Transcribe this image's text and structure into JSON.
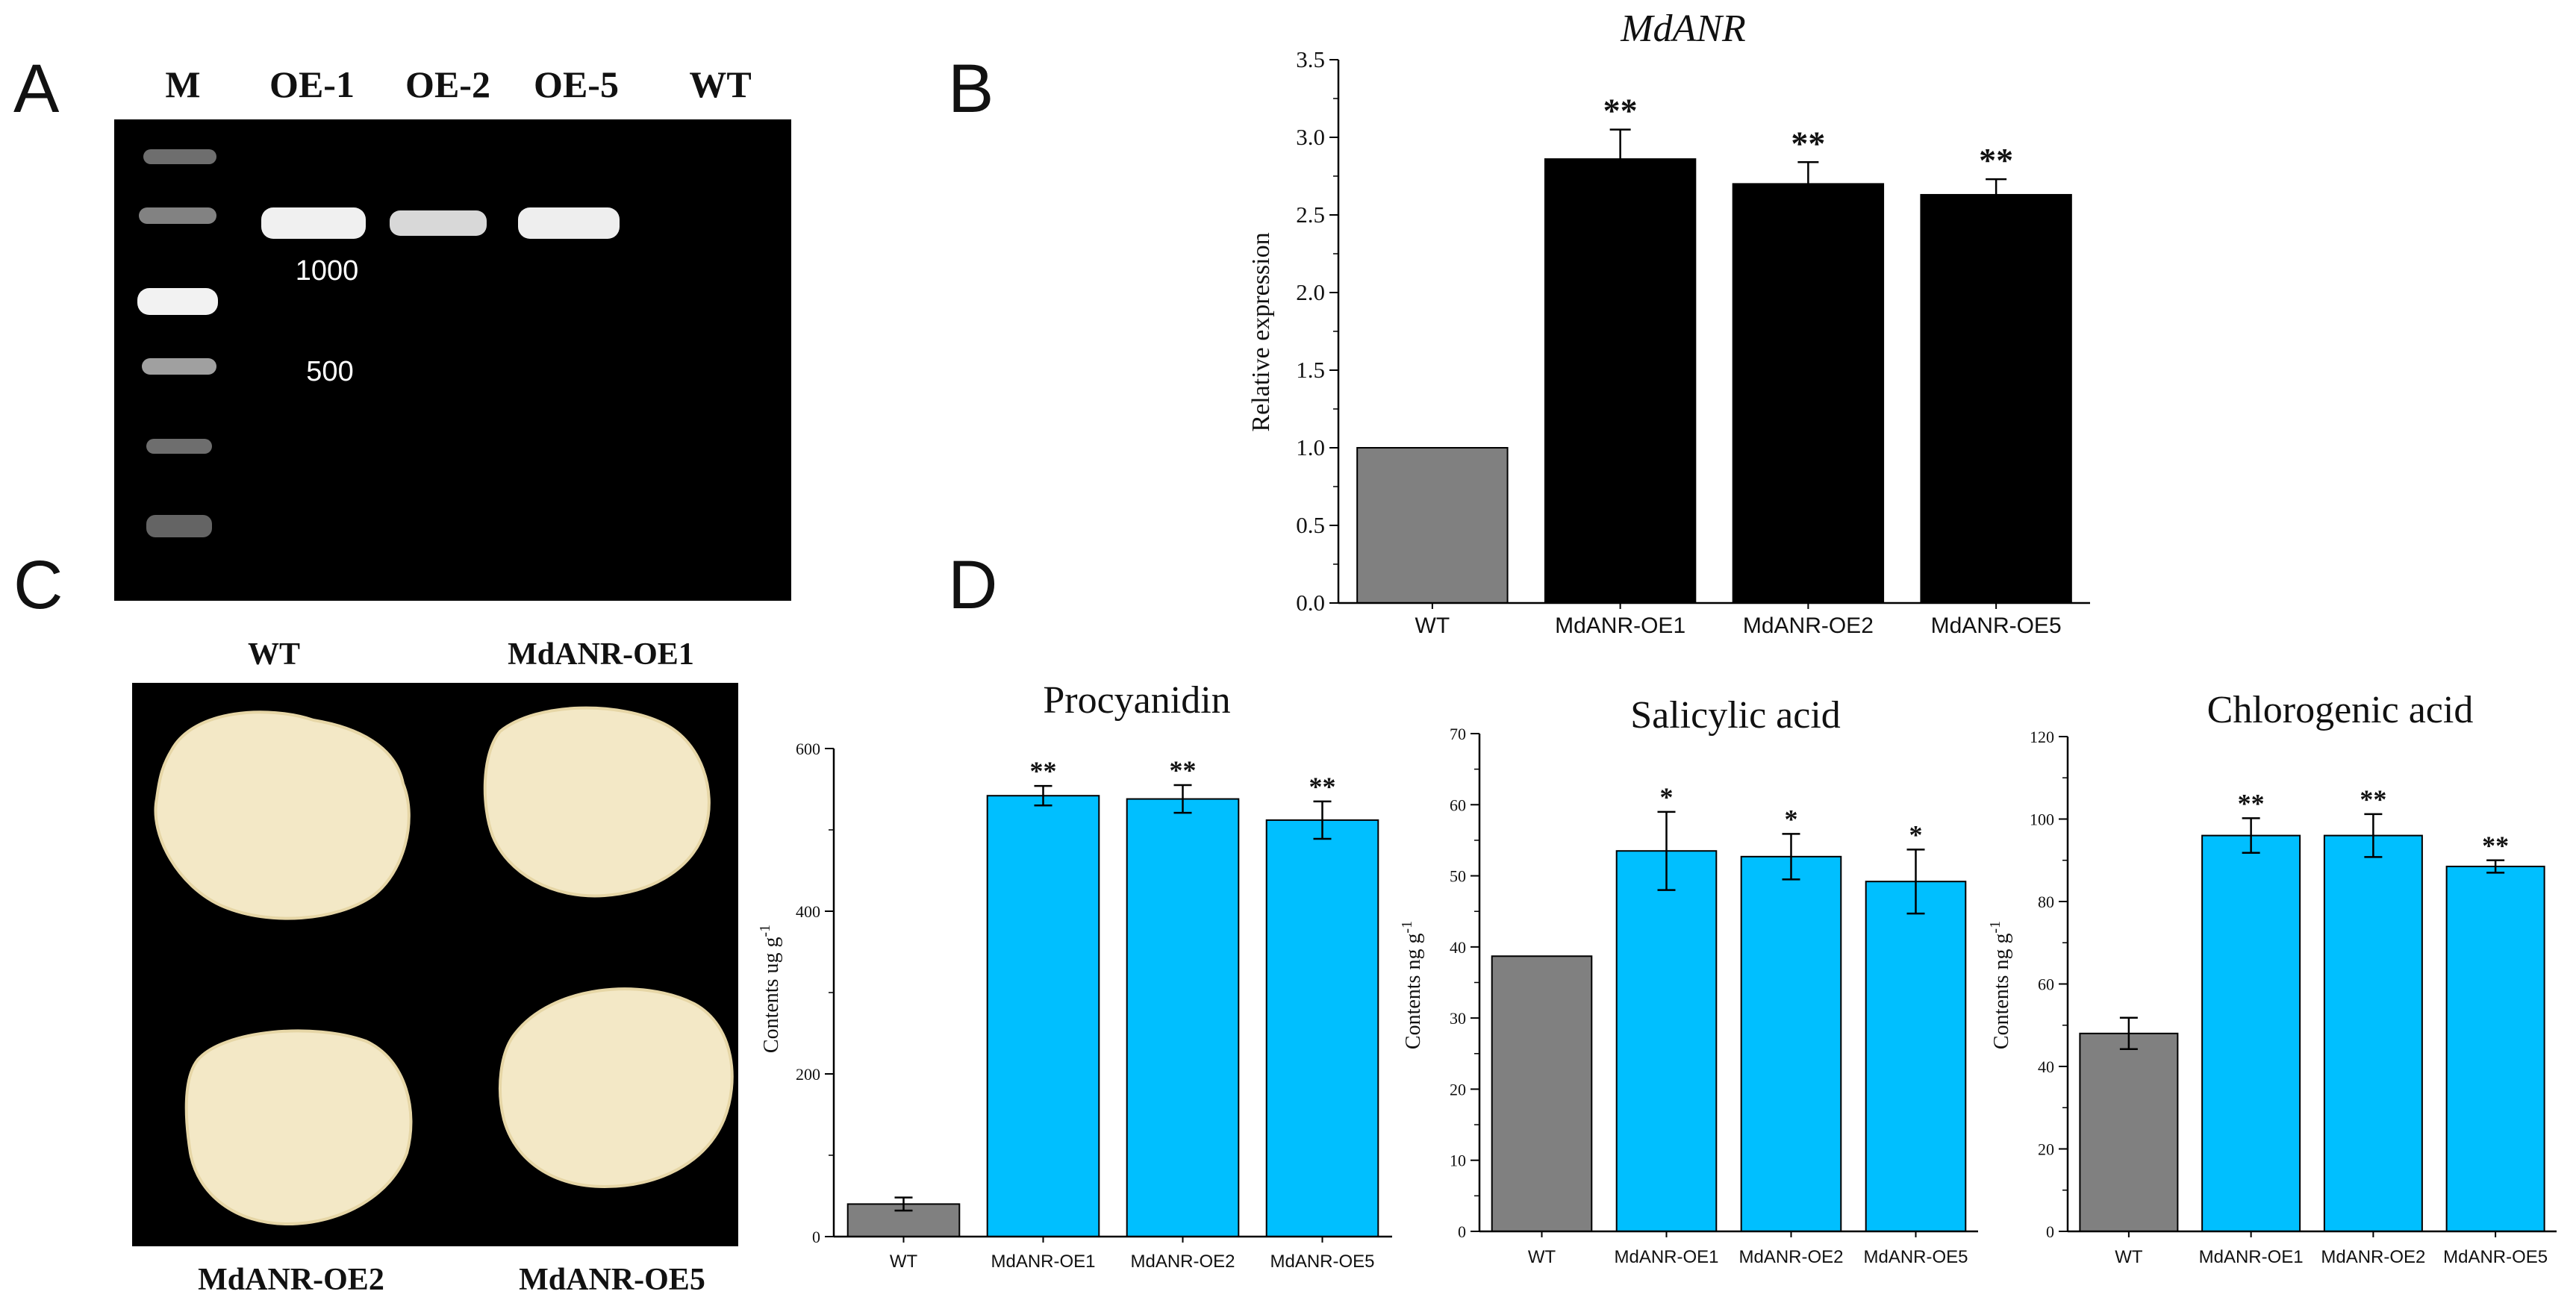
{
  "panels": {
    "a": {
      "letter": "A",
      "lanes": [
        "M",
        "OE-1",
        "OE-2",
        "OE-5",
        "WT"
      ],
      "markers": [
        "1000",
        "500"
      ],
      "colors": {
        "background": "#000000",
        "band": "#e8e8e8"
      }
    },
    "b": {
      "letter": "B"
    },
    "c": {
      "letter": "C",
      "photo_labels": [
        "WT",
        "MdANR-OE1",
        "MdANR-OE2",
        "MdANR-OE5"
      ],
      "colors": {
        "background": "#000000",
        "callus": "#f3e8c6"
      }
    },
    "d": {
      "letter": "D"
    }
  },
  "chart_data": [
    {
      "id": "expr",
      "type": "bar",
      "title": "MdANR",
      "title_italic": true,
      "ylabel": "Relative expression",
      "categories": [
        "WT",
        "MdANR-OE1",
        "MdANR-OE2",
        "MdANR-OE5"
      ],
      "values": [
        1.0,
        2.86,
        2.7,
        2.63
      ],
      "errors": [
        0,
        0.19,
        0.14,
        0.1
      ],
      "significance": [
        "",
        "**",
        "**",
        "**"
      ],
      "colors": [
        "#808080",
        "#000000",
        "#000000",
        "#000000"
      ],
      "ylim": [
        0,
        3.5
      ],
      "yticks": [
        0.0,
        0.5,
        1.0,
        1.5,
        2.0,
        2.5,
        3.0,
        3.5
      ],
      "ytick_labels": [
        "0.0",
        "0.5",
        "1.0",
        "1.5",
        "2.0",
        "2.5",
        "3.0",
        "3.5"
      ]
    },
    {
      "id": "procyanidin",
      "type": "bar",
      "title": "Procyanidin",
      "ylabel_parts": [
        "Contents ug g",
        "-1"
      ],
      "categories": [
        "WT",
        "MdANR-OE1",
        "MdANR-OE2",
        "MdANR-OE5"
      ],
      "values": [
        40,
        542,
        538,
        512
      ],
      "errors": [
        8,
        12,
        17,
        23
      ],
      "significance": [
        "",
        "**",
        "**",
        "**"
      ],
      "colors": [
        "#808080",
        "#00bfff",
        "#00bfff",
        "#00bfff"
      ],
      "ylim": [
        0,
        600
      ],
      "yticks": [
        0,
        200,
        400,
        600
      ],
      "ytick_labels": [
        "0",
        "200",
        "400",
        "600"
      ]
    },
    {
      "id": "salicylic",
      "type": "bar",
      "title": "Salicylic acid",
      "ylabel_parts": [
        "Contents ng g",
        "-1"
      ],
      "categories": [
        "WT",
        "MdANR-OE1",
        "MdANR-OE2",
        "MdANR-OE5"
      ],
      "values": [
        38.7,
        53.5,
        52.7,
        49.2
      ],
      "errors": [
        0,
        5.5,
        3.2,
        4.5
      ],
      "significance": [
        "",
        "*",
        "*",
        "*"
      ],
      "colors": [
        "#808080",
        "#00bfff",
        "#00bfff",
        "#00bfff"
      ],
      "ylim": [
        0,
        70
      ],
      "yticks": [
        0,
        10,
        20,
        30,
        40,
        50,
        60,
        70
      ],
      "ytick_labels": [
        "0",
        "10",
        "20",
        "30",
        "40",
        "50",
        "60",
        "70"
      ]
    },
    {
      "id": "chlorogenic",
      "type": "bar",
      "title": "Chlorogenic acid",
      "ylabel_parts": [
        "Contents ng g",
        "-1"
      ],
      "categories": [
        "WT",
        "MdANR-OE1",
        "MdANR-OE2",
        "MdANR-OE5"
      ],
      "values": [
        48,
        96,
        96,
        88.5
      ],
      "errors": [
        3.8,
        4.2,
        5.2,
        1.5
      ],
      "significance": [
        "",
        "**",
        "**",
        "**"
      ],
      "colors": [
        "#808080",
        "#00bfff",
        "#00bfff",
        "#00bfff"
      ],
      "ylim": [
        0,
        120
      ],
      "yticks": [
        0,
        20,
        40,
        60,
        80,
        100,
        120
      ],
      "ytick_labels": [
        "0",
        "20",
        "40",
        "60",
        "80",
        "100",
        "120"
      ]
    }
  ]
}
